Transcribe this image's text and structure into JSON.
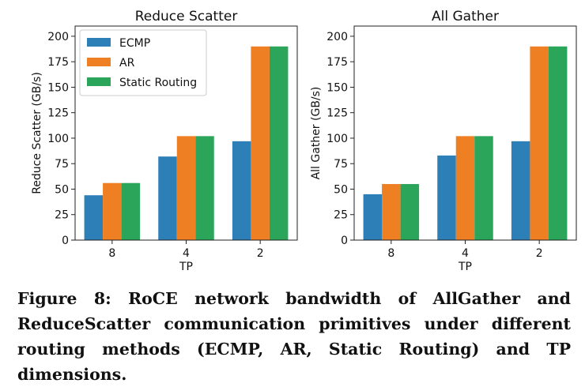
{
  "chart_data": [
    {
      "type": "bar",
      "title": "Reduce Scatter",
      "xlabel": "TP",
      "ylabel": "Reduce Scatter (GB/s)",
      "categories": [
        "8",
        "4",
        "2"
      ],
      "ylim": [
        0,
        210
      ],
      "yticks": [
        0,
        25,
        50,
        75,
        100,
        125,
        150,
        175,
        200
      ],
      "grid": false,
      "legend": "top-left",
      "series": [
        {
          "name": "ECMP",
          "color": "#2d7fb8",
          "values": [
            44,
            82,
            97
          ]
        },
        {
          "name": "AR",
          "color": "#ee7f22",
          "values": [
            56,
            102,
            190
          ]
        },
        {
          "name": "Static Routing",
          "color": "#2ba55a",
          "values": [
            56,
            102,
            190
          ]
        }
      ]
    },
    {
      "type": "bar",
      "title": "All Gather",
      "xlabel": "TP",
      "ylabel": "All Gather (GB/s)",
      "categories": [
        "8",
        "4",
        "2"
      ],
      "ylim": [
        0,
        210
      ],
      "yticks": [
        0,
        25,
        50,
        75,
        100,
        125,
        150,
        175,
        200
      ],
      "grid": false,
      "legend": "none",
      "series": [
        {
          "name": "ECMP",
          "color": "#2d7fb8",
          "values": [
            45,
            83,
            97
          ]
        },
        {
          "name": "AR",
          "color": "#ee7f22",
          "values": [
            55,
            102,
            190
          ]
        },
        {
          "name": "Static Routing",
          "color": "#2ba55a",
          "values": [
            55,
            102,
            190
          ]
        }
      ]
    }
  ],
  "caption": "Figure 8: RoCE network bandwidth of AllGather and ReduceScatter communication primitives under different routing methods (ECMP, AR, Static Routing) and TP dimensions."
}
